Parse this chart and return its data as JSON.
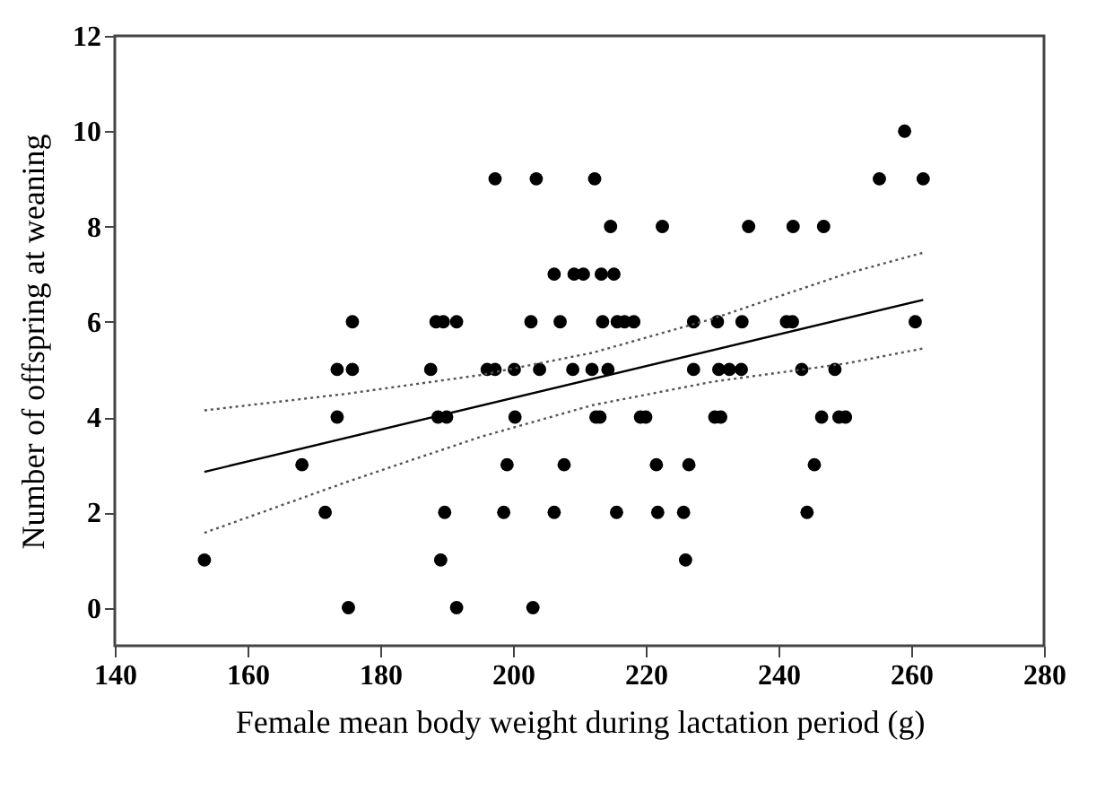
{
  "chart_data": {
    "type": "scatter",
    "xlabel": "Female mean body weight during lactation period (g)",
    "ylabel": "Number of offspring at weaning",
    "xlim": [
      140,
      280
    ],
    "xticks": [
      140,
      160,
      180,
      200,
      220,
      240,
      260,
      280
    ],
    "ylim": [
      -0.8,
      12
    ],
    "yticks": [
      0,
      2,
      4,
      6,
      8,
      10,
      12
    ],
    "series": [
      {
        "marker": "circle",
        "color": "#000000",
        "x": [
          153.5,
          168.2,
          171.7,
          173.5,
          175.8,
          173.5,
          175.8,
          175.2,
          188.4,
          189.5,
          191.5,
          187.6,
          188.7,
          190.0,
          189.7,
          189.1,
          191.5,
          197.3,
          203.5,
          212.3,
          214.7,
          222.5,
          235.5,
          206.2,
          209.2,
          210.6,
          213.3,
          215.2,
          202.7,
          207.1,
          213.5,
          215.7,
          216.8,
          218.2,
          227.2,
          230.8,
          234.5,
          196.1,
          197.3,
          200.2,
          204.0,
          209.0,
          211.9,
          214.3,
          227.2,
          231.0,
          232.6,
          234.4,
          200.3,
          212.5,
          213.1,
          219.2,
          220.0,
          230.4,
          231.3,
          199.1,
          207.7,
          221.6,
          226.5,
          198.6,
          206.2,
          215.6,
          221.8,
          225.7,
          226.0,
          203.0,
          259.0,
          255.2,
          261.8,
          242.2,
          246.8,
          241.2,
          242.1,
          260.6,
          243.5,
          248.5,
          246.5,
          249.1,
          250.1,
          245.4,
          244.3
        ],
        "values": [
          1,
          3,
          2,
          5,
          5,
          4,
          6,
          0,
          6,
          6,
          6,
          5,
          4,
          4,
          2,
          1,
          0,
          9,
          9,
          9,
          8,
          8,
          8,
          7,
          7,
          7,
          7,
          7,
          6,
          6,
          6,
          6,
          6,
          6,
          6,
          6,
          6,
          5,
          5,
          5,
          5,
          5,
          5,
          5,
          5,
          5,
          5,
          5,
          4,
          4,
          4,
          4,
          4,
          4,
          4,
          3,
          3,
          3,
          3,
          2,
          2,
          2,
          2,
          2,
          1,
          0,
          10,
          9,
          9,
          8,
          8,
          6,
          6,
          6,
          5,
          5,
          4,
          4,
          4,
          3,
          2
        ]
      },
      {
        "type": "line",
        "marker": "none",
        "color": "#000000",
        "line_style": "solid",
        "x": [
          153.5,
          261.8
        ],
        "values": [
          2.85,
          6.46
        ]
      },
      {
        "type": "line",
        "marker": "none",
        "color": "#555555",
        "line_style": "dotted",
        "x": [
          153.5,
          175,
          195,
          212,
          230,
          250,
          261.8
        ],
        "values": [
          4.14,
          4.49,
          4.88,
          5.35,
          6.06,
          7.0,
          7.45
        ]
      },
      {
        "type": "line",
        "marker": "none",
        "color": "#555555",
        "line_style": "dotted",
        "x": [
          153.5,
          175,
          195,
          212,
          230,
          250,
          261.8
        ],
        "values": [
          1.57,
          2.64,
          3.58,
          4.25,
          4.74,
          5.12,
          5.44
        ]
      }
    ]
  }
}
